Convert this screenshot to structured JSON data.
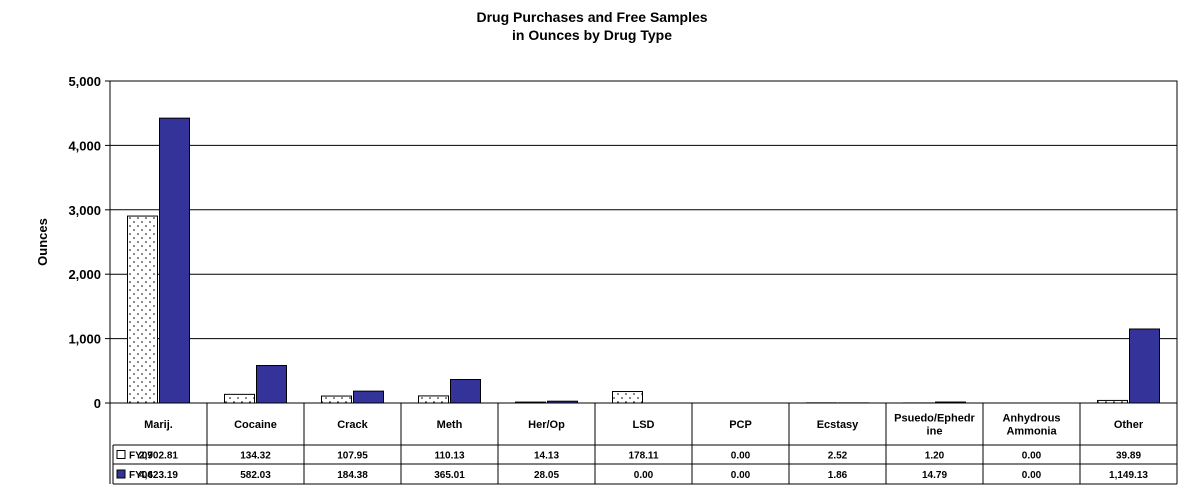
{
  "chart_data": {
    "type": "bar",
    "title_line1": "Drug Purchases and Free Samples",
    "title_line2": "in Ounces by Drug Type",
    "ylabel": "Ounces",
    "ylim": [
      0,
      5000
    ],
    "yticks": [
      "0",
      "1,000",
      "2,000",
      "3,000",
      "4,000",
      "5,000"
    ],
    "ytick_values": [
      0,
      1000,
      2000,
      3000,
      4000,
      5000
    ],
    "grid": true,
    "legend": "data-table",
    "categories": [
      [
        "Marij."
      ],
      [
        "Cocaine"
      ],
      [
        "Crack"
      ],
      [
        "Meth"
      ],
      [
        "Her/Op"
      ],
      [
        "LSD"
      ],
      [
        "PCP"
      ],
      [
        "Ecstasy"
      ],
      [
        "Psuedo/Ephedr",
        "ine"
      ],
      [
        "Anhydrous",
        "Ammonia"
      ],
      [
        "Other"
      ]
    ],
    "series": [
      {
        "name": "FY07",
        "color": "#ffffff",
        "pattern": "dotted",
        "values": [
          2902.81,
          134.32,
          107.95,
          110.13,
          14.13,
          178.11,
          0.0,
          2.52,
          1.2,
          0.0,
          39.89
        ],
        "labels": [
          "2,902.81",
          "134.32",
          "107.95",
          "110.13",
          "14.13",
          "178.11",
          "0.00",
          "2.52",
          "1.20",
          "0.00",
          "39.89"
        ]
      },
      {
        "name": "FY06",
        "color": "#333399",
        "pattern": "solid",
        "values": [
          4423.19,
          582.03,
          184.38,
          365.01,
          28.05,
          0.0,
          0.0,
          1.86,
          14.79,
          0.0,
          1149.13
        ],
        "labels": [
          "4,423.19",
          "582.03",
          "184.38",
          "365.01",
          "28.05",
          "0.00",
          "0.00",
          "1.86",
          "14.79",
          "0.00",
          "1,149.13"
        ]
      }
    ]
  }
}
